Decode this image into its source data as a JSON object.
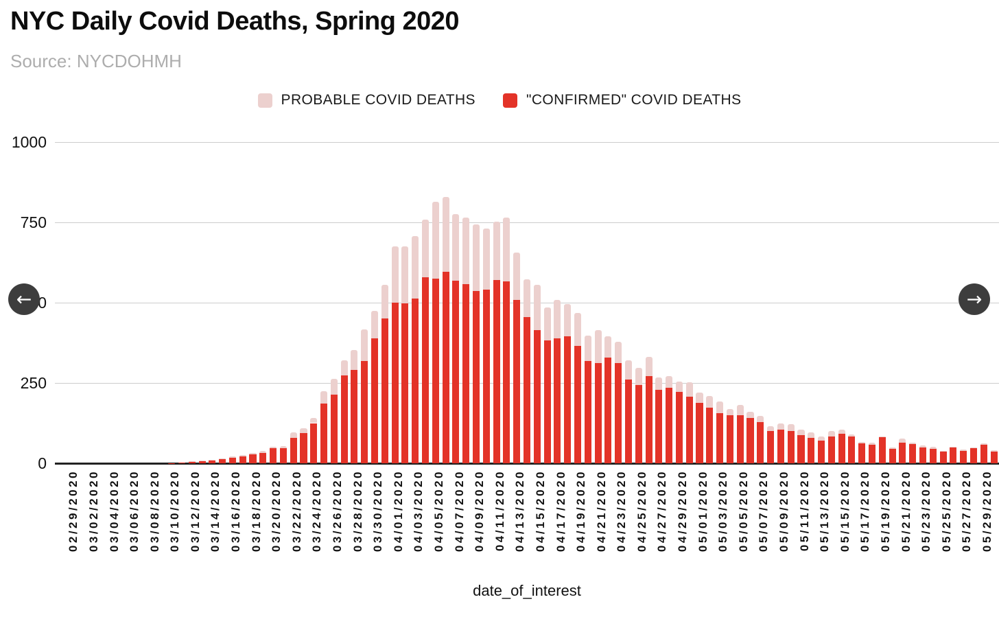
{
  "page": {
    "title": "NYC Daily Covid Deaths, Spring 2020",
    "source": "Source: NYCDOHMH"
  },
  "legend": {
    "items": [
      {
        "label": "PROBABLE COVID DEATHS",
        "color": "#ecd0ce"
      },
      {
        "label": "\"CONFIRMED\" COVID DEATHS",
        "color": "#e33328"
      }
    ]
  },
  "nav": {
    "left_arrow": "←",
    "right_arrow": "→"
  },
  "chart_data": {
    "type": "bar",
    "stacked": true,
    "title": "NYC Daily Covid Deaths, Spring 2020",
    "xlabel": "date_of_interest",
    "ylabel": "",
    "ylim": [
      0,
      1000
    ],
    "yticks": [
      0,
      250,
      500,
      750,
      1000
    ],
    "grid": true,
    "legend_position": "top",
    "x_tick_every": 2,
    "x": [
      "02/29/2020",
      "03/01/2020",
      "03/02/2020",
      "03/03/2020",
      "03/04/2020",
      "03/05/2020",
      "03/06/2020",
      "03/07/2020",
      "03/08/2020",
      "03/09/2020",
      "03/10/2020",
      "03/11/2020",
      "03/12/2020",
      "03/13/2020",
      "03/14/2020",
      "03/15/2020",
      "03/16/2020",
      "03/17/2020",
      "03/18/2020",
      "03/19/2020",
      "03/20/2020",
      "03/21/2020",
      "03/22/2020",
      "03/23/2020",
      "03/24/2020",
      "03/25/2020",
      "03/26/2020",
      "03/27/2020",
      "03/28/2020",
      "03/29/2020",
      "03/30/2020",
      "03/31/2020",
      "04/01/2020",
      "04/02/2020",
      "04/03/2020",
      "04/04/2020",
      "04/05/2020",
      "04/06/2020",
      "04/07/2020",
      "04/08/2020",
      "04/09/2020",
      "04/10/2020",
      "04/11/2020",
      "04/12/2020",
      "04/13/2020",
      "04/14/2020",
      "04/15/2020",
      "04/16/2020",
      "04/17/2020",
      "04/18/2020",
      "04/19/2020",
      "04/20/2020",
      "04/21/2020",
      "04/22/2020",
      "04/23/2020",
      "04/24/2020",
      "04/25/2020",
      "04/26/2020",
      "04/27/2020",
      "04/28/2020",
      "04/29/2020",
      "04/30/2020",
      "05/01/2020",
      "05/02/2020",
      "05/03/2020",
      "05/04/2020",
      "05/05/2020",
      "05/06/2020",
      "05/07/2020",
      "05/08/2020",
      "05/09/2020",
      "05/10/2020",
      "05/11/2020",
      "05/12/2020",
      "05/13/2020",
      "05/14/2020",
      "05/15/2020",
      "05/16/2020",
      "05/17/2020",
      "05/18/2020",
      "05/19/2020",
      "05/20/2020",
      "05/21/2020",
      "05/22/2020",
      "05/23/2020",
      "05/24/2020",
      "05/25/2020",
      "05/26/2020",
      "05/27/2020",
      "05/28/2020",
      "05/29/2020",
      "05/30/2020",
      "05/31/2020"
    ],
    "series": [
      {
        "name": "\"CONFIRMED\" COVID DEATHS",
        "color": "#e33328",
        "values": [
          0,
          0,
          0,
          0,
          0,
          0,
          0,
          0,
          0,
          0,
          0,
          1,
          2,
          5,
          6,
          9,
          13,
          18,
          21,
          28,
          33,
          46,
          46,
          80,
          94,
          125,
          185,
          214,
          274,
          290,
          319,
          388,
          450,
          499,
          497,
          513,
          579,
          575,
          596,
          568,
          558,
          536,
          540,
          571,
          566,
          509,
          456,
          414,
          382,
          388,
          395,
          365,
          319,
          312,
          330,
          311,
          261,
          244,
          271,
          228,
          236,
          222,
          208,
          187,
          174,
          156,
          150,
          150,
          141,
          128,
          100,
          105,
          101,
          87,
          80,
          71,
          83,
          92,
          83,
          62,
          58,
          81,
          45,
          64,
          59,
          50,
          45,
          37,
          50,
          39,
          46,
          57,
          37
        ]
      },
      {
        "name": "PROBABLE COVID DEATHS",
        "color": "#ecd0ce",
        "values": [
          0,
          0,
          0,
          0,
          0,
          0,
          0,
          0,
          0,
          0,
          0,
          0,
          0,
          1,
          2,
          2,
          2,
          3,
          4,
          4,
          6,
          6,
          7,
          16,
          16,
          17,
          39,
          49,
          46,
          62,
          98,
          86,
          105,
          176,
          178,
          194,
          180,
          240,
          232,
          208,
          208,
          208,
          190,
          182,
          200,
          146,
          117,
          142,
          102,
          121,
          100,
          102,
          78,
          103,
          65,
          68,
          59,
          53,
          60,
          40,
          36,
          32,
          44,
          33,
          35,
          37,
          19,
          32,
          19,
          19,
          15,
          20,
          20,
          18,
          16,
          13,
          18,
          12,
          7,
          4,
          6,
          2,
          5,
          12,
          5,
          5,
          7,
          2,
          2,
          4,
          4,
          5,
          4
        ]
      }
    ]
  }
}
